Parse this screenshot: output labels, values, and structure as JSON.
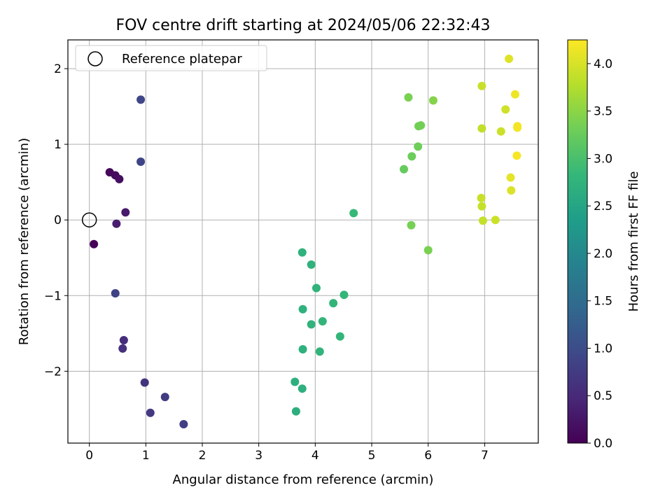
{
  "chart_data": {
    "type": "scatter",
    "title": "FOV centre drift starting at 2024/05/06 22:32:43",
    "xlabel": "Angular distance from reference (arcmin)",
    "ylabel": "Rotation from reference (arcmin)",
    "xlim": [
      -0.38,
      7.95
    ],
    "ylim": [
      -2.95,
      2.38
    ],
    "xticks": [
      0,
      1,
      2,
      3,
      4,
      5,
      6,
      7
    ],
    "yticks": [
      -2,
      -1,
      0,
      1,
      2
    ],
    "ytick_labels": [
      "−2",
      "−1",
      "0",
      "1",
      "2"
    ],
    "grid": true,
    "legend": {
      "label": "Reference platepar",
      "placement": "top-left"
    },
    "reference_point": {
      "x": 0,
      "y": 0
    },
    "colorbar": {
      "label": "Hours from first FF file",
      "colormap": "viridis",
      "range": [
        0.0,
        4.25
      ],
      "ticks": [
        "0.0",
        "0.5",
        "1.0",
        "1.5",
        "2.0",
        "2.5",
        "3.0",
        "3.5",
        "4.0"
      ]
    },
    "colormap_stops": [
      "#440154",
      "#482878",
      "#3e4989",
      "#31688e",
      "#26828e",
      "#1f9e89",
      "#35b779",
      "#6ece58",
      "#b5de2b",
      "#fde725"
    ],
    "points": [
      {
        "x": 0.08,
        "y": -0.32,
        "h": 0.02
      },
      {
        "x": 0.36,
        "y": 0.63,
        "h": 0.08
      },
      {
        "x": 0.46,
        "y": 0.59,
        "h": 0.12
      },
      {
        "x": 0.53,
        "y": 0.54,
        "h": 0.16
      },
      {
        "x": 0.64,
        "y": 0.1,
        "h": 0.3
      },
      {
        "x": 0.48,
        "y": -0.05,
        "h": 0.35
      },
      {
        "x": 0.46,
        "y": -0.97,
        "h": 0.85
      },
      {
        "x": 0.61,
        "y": -1.59,
        "h": 0.55
      },
      {
        "x": 0.59,
        "y": -1.7,
        "h": 0.6
      },
      {
        "x": 0.98,
        "y": -2.15,
        "h": 0.65
      },
      {
        "x": 1.08,
        "y": -2.55,
        "h": 0.72
      },
      {
        "x": 1.34,
        "y": -2.34,
        "h": 0.76
      },
      {
        "x": 1.67,
        "y": -2.7,
        "h": 0.8
      },
      {
        "x": 0.91,
        "y": 0.77,
        "h": 0.88
      },
      {
        "x": 0.91,
        "y": 1.59,
        "h": 0.92
      },
      {
        "x": 3.77,
        "y": -0.43,
        "h": 2.72
      },
      {
        "x": 3.93,
        "y": -0.59,
        "h": 2.74
      },
      {
        "x": 4.02,
        "y": -0.9,
        "h": 2.76
      },
      {
        "x": 3.78,
        "y": -1.18,
        "h": 2.72
      },
      {
        "x": 3.93,
        "y": -1.38,
        "h": 2.74
      },
      {
        "x": 4.13,
        "y": -1.34,
        "h": 2.78
      },
      {
        "x": 4.32,
        "y": -1.1,
        "h": 2.8
      },
      {
        "x": 4.51,
        "y": -0.99,
        "h": 2.82
      },
      {
        "x": 4.44,
        "y": -1.54,
        "h": 2.8
      },
      {
        "x": 3.78,
        "y": -1.71,
        "h": 2.72
      },
      {
        "x": 4.08,
        "y": -1.74,
        "h": 2.76
      },
      {
        "x": 3.64,
        "y": -2.14,
        "h": 2.68
      },
      {
        "x": 3.77,
        "y": -2.23,
        "h": 2.7
      },
      {
        "x": 3.66,
        "y": -2.53,
        "h": 2.66
      },
      {
        "x": 4.68,
        "y": 0.09,
        "h": 2.86
      },
      {
        "x": 5.65,
        "y": 1.62,
        "h": 3.38
      },
      {
        "x": 6.09,
        "y": 1.58,
        "h": 3.45
      },
      {
        "x": 5.83,
        "y": 1.24,
        "h": 3.32
      },
      {
        "x": 5.87,
        "y": 1.25,
        "h": 3.33
      },
      {
        "x": 5.82,
        "y": 0.97,
        "h": 3.3
      },
      {
        "x": 5.71,
        "y": 0.84,
        "h": 3.28
      },
      {
        "x": 5.57,
        "y": 0.67,
        "h": 3.24
      },
      {
        "x": 5.7,
        "y": -0.07,
        "h": 3.35
      },
      {
        "x": 6.0,
        "y": -0.4,
        "h": 3.38
      },
      {
        "x": 7.43,
        "y": 2.13,
        "h": 4.05
      },
      {
        "x": 6.95,
        "y": 1.77,
        "h": 3.9
      },
      {
        "x": 7.54,
        "y": 1.66,
        "h": 4.15
      },
      {
        "x": 7.37,
        "y": 1.46,
        "h": 3.95
      },
      {
        "x": 6.95,
        "y": 1.21,
        "h": 3.85
      },
      {
        "x": 7.29,
        "y": 1.17,
        "h": 3.92
      },
      {
        "x": 7.58,
        "y": 1.24,
        "h": 4.2
      },
      {
        "x": 7.58,
        "y": 1.22,
        "h": 4.18
      },
      {
        "x": 7.57,
        "y": 0.85,
        "h": 4.2
      },
      {
        "x": 7.46,
        "y": 0.56,
        "h": 4.1
      },
      {
        "x": 7.47,
        "y": 0.39,
        "h": 4.02
      },
      {
        "x": 6.94,
        "y": 0.29,
        "h": 3.9
      },
      {
        "x": 6.95,
        "y": 0.18,
        "h": 3.88
      },
      {
        "x": 6.97,
        "y": -0.01,
        "h": 3.88
      },
      {
        "x": 7.19,
        "y": 0.0,
        "h": 3.92
      }
    ]
  }
}
